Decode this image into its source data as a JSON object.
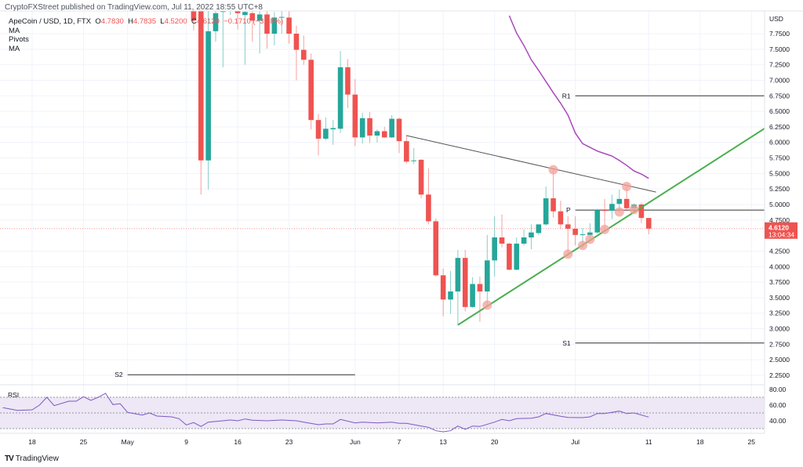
{
  "header": {
    "published": "CryptoFXStreet published on TradingView.com, Jul 11, 2022 18:55 UTC+8"
  },
  "legend": {
    "symbol": "ApeCoin / USD, 1D, FTX",
    "o_label": "O",
    "o": "4.7830",
    "h_label": "H",
    "h": "4.7835",
    "l_label": "L",
    "l": "4.5200",
    "c_label": "C",
    "c": "4.6120",
    "change": "−0.1710 (−3.58%)",
    "indicators": [
      "MA",
      "Pivots",
      "MA"
    ]
  },
  "footer": {
    "brand": "TradingView",
    "logo_icon": "tradingview-logo-icon"
  },
  "colors": {
    "up": "#26a69a",
    "down": "#ef5350",
    "ma": "#ab47bc",
    "trend_support": "#4caf50",
    "trend_resistance": "#555555",
    "pivot": "#333333",
    "rsi": "#7e57c2",
    "rsi_band": "#ede7f6",
    "marker": "#f4a09a"
  },
  "chart_data": [
    {
      "type": "candlestick",
      "currency_label": "USD",
      "ylim": [
        2.1,
        8.1
      ],
      "y_ticks": [
        "7.7500",
        "7.5000",
        "7.2500",
        "7.0000",
        "6.7500",
        "6.5000",
        "6.2500",
        "6.0000",
        "5.7500",
        "5.5000",
        "5.2500",
        "5.0000",
        "4.7500",
        "4.2500",
        "4.0000",
        "3.7500",
        "3.5000",
        "3.2500",
        "3.0000",
        "2.7500",
        "2.5000",
        "2.2500"
      ],
      "x_ticks": [
        {
          "date": "2022-04-18",
          "label": "18"
        },
        {
          "date": "2022-04-25",
          "label": "25"
        },
        {
          "date": "2022-05-01",
          "label": "May"
        },
        {
          "date": "2022-05-09",
          "label": "9"
        },
        {
          "date": "2022-05-16",
          "label": "16"
        },
        {
          "date": "2022-05-23",
          "label": "23"
        },
        {
          "date": "2022-06-01",
          "label": "Jun"
        },
        {
          "date": "2022-06-07",
          "label": "7"
        },
        {
          "date": "2022-06-13",
          "label": "13"
        },
        {
          "date": "2022-06-20",
          "label": "20"
        },
        {
          "date": "2022-07-01",
          "label": "Jul"
        },
        {
          "date": "2022-07-11",
          "label": "11"
        },
        {
          "date": "2022-07-18",
          "label": "18"
        },
        {
          "date": "2022-07-25",
          "label": "25"
        }
      ],
      "last_price": {
        "value": 4.612,
        "label": "4.6120",
        "countdown": "13:04:34"
      },
      "candles_columns": [
        "date",
        "open",
        "high",
        "low",
        "close"
      ],
      "candles": [
        [
          "2022-05-10",
          8.3,
          8.6,
          7.8,
          7.96
        ],
        [
          "2022-05-11",
          8.4,
          8.6,
          5.16,
          5.71
        ],
        [
          "2022-05-12",
          5.71,
          8.3,
          5.24,
          7.79
        ],
        [
          "2022-05-13",
          7.79,
          8.4,
          7.62,
          8.08
        ],
        [
          "2022-05-14",
          8.1,
          8.5,
          7.21,
          8.3
        ],
        [
          "2022-05-15",
          8.3,
          8.45,
          8.05,
          8.32
        ],
        [
          "2022-05-16",
          8.15,
          8.5,
          7.82,
          8.08
        ],
        [
          "2022-05-17",
          8.05,
          8.4,
          7.25,
          8.1
        ],
        [
          "2022-05-18",
          8.08,
          8.3,
          7.62,
          7.96
        ],
        [
          "2022-05-19",
          7.96,
          8.2,
          7.43,
          8.06
        ],
        [
          "2022-05-20",
          8.06,
          8.2,
          7.51,
          7.75
        ],
        [
          "2022-05-21",
          7.75,
          8.1,
          7.56,
          8.01
        ],
        [
          "2022-05-22",
          8.01,
          8.2,
          7.75,
          8.02
        ],
        [
          "2022-05-23",
          8.01,
          8.2,
          7.59,
          7.75
        ],
        [
          "2022-05-24",
          7.75,
          7.88,
          7.0,
          7.49
        ],
        [
          "2022-05-25",
          7.49,
          7.72,
          7.25,
          7.33
        ],
        [
          "2022-05-26",
          7.33,
          7.43,
          6.21,
          6.36
        ],
        [
          "2022-05-27",
          6.36,
          6.46,
          5.79,
          6.06
        ],
        [
          "2022-05-28",
          6.06,
          6.4,
          6.03,
          6.22
        ],
        [
          "2022-05-29",
          6.21,
          6.36,
          5.96,
          6.23
        ],
        [
          "2022-05-30",
          6.22,
          7.47,
          6.15,
          7.21
        ],
        [
          "2022-05-31",
          7.21,
          7.34,
          6.55,
          6.77
        ],
        [
          "2022-06-01",
          6.77,
          7.02,
          5.94,
          6.08
        ],
        [
          "2022-06-02",
          6.08,
          6.48,
          5.98,
          6.39
        ],
        [
          "2022-06-03",
          6.39,
          6.49,
          5.99,
          6.11
        ],
        [
          "2022-06-04",
          6.11,
          6.21,
          6.0,
          6.18
        ],
        [
          "2022-06-05",
          6.18,
          6.25,
          6.07,
          6.08
        ],
        [
          "2022-06-06",
          6.08,
          6.44,
          6.07,
          6.38
        ],
        [
          "2022-06-07",
          6.38,
          6.4,
          5.83,
          6.02
        ],
        [
          "2022-06-08",
          6.02,
          6.12,
          5.66,
          5.69
        ],
        [
          "2022-06-09",
          5.7,
          5.91,
          5.65,
          5.71
        ],
        [
          "2022-06-10",
          5.72,
          5.73,
          5.1,
          5.16
        ],
        [
          "2022-06-11",
          5.16,
          5.58,
          4.68,
          4.73
        ],
        [
          "2022-06-12",
          4.73,
          4.78,
          3.84,
          3.86
        ],
        [
          "2022-06-13",
          3.86,
          3.97,
          3.2,
          3.47
        ],
        [
          "2022-06-14",
          3.47,
          3.93,
          3.24,
          3.6
        ],
        [
          "2022-06-15",
          3.6,
          4.27,
          3.06,
          4.14
        ],
        [
          "2022-06-16",
          4.14,
          4.27,
          3.28,
          3.35
        ],
        [
          "2022-06-17",
          3.35,
          3.83,
          3.34,
          3.72
        ],
        [
          "2022-06-18",
          3.72,
          3.84,
          3.11,
          3.6
        ],
        [
          "2022-06-19",
          3.6,
          4.51,
          3.35,
          4.1
        ],
        [
          "2022-06-20",
          4.1,
          4.81,
          3.84,
          4.47
        ],
        [
          "2022-06-21",
          4.47,
          4.84,
          4.31,
          4.37
        ],
        [
          "2022-06-22",
          4.37,
          4.38,
          3.94,
          3.95
        ],
        [
          "2022-06-23",
          3.95,
          4.47,
          3.94,
          4.37
        ],
        [
          "2022-06-24",
          4.37,
          4.6,
          4.34,
          4.47
        ],
        [
          "2022-06-25",
          4.47,
          4.68,
          4.28,
          4.55
        ],
        [
          "2022-06-26",
          4.54,
          4.68,
          4.51,
          4.68
        ],
        [
          "2022-06-27",
          4.68,
          5.29,
          4.66,
          5.1
        ],
        [
          "2022-06-28",
          5.1,
          5.56,
          4.79,
          4.89
        ],
        [
          "2022-06-29",
          4.89,
          5.06,
          4.61,
          4.68
        ],
        [
          "2022-06-30",
          4.68,
          4.81,
          4.2,
          4.61
        ],
        [
          "2022-07-01",
          4.61,
          4.81,
          4.34,
          4.51
        ],
        [
          "2022-07-02",
          4.51,
          4.62,
          4.3,
          4.52
        ],
        [
          "2022-07-03",
          4.51,
          4.7,
          4.4,
          4.55
        ],
        [
          "2022-07-04",
          4.55,
          4.93,
          4.53,
          4.91
        ],
        [
          "2022-07-05",
          4.91,
          5.09,
          4.59,
          4.9
        ],
        [
          "2022-07-06",
          4.9,
          5.16,
          4.77,
          5.01
        ],
        [
          "2022-07-07",
          5.01,
          5.24,
          4.88,
          5.09
        ],
        [
          "2022-07-08",
          5.09,
          5.29,
          4.9,
          4.94
        ],
        [
          "2022-07-09",
          4.94,
          5.02,
          4.89,
          5.0
        ],
        [
          "2022-07-10",
          5.0,
          5.03,
          4.7,
          4.783
        ],
        [
          "2022-07-11",
          4.783,
          4.7835,
          4.52,
          4.612
        ]
      ],
      "ma": {
        "start": "2022-06-22",
        "values": [
          8.04,
          7.76,
          7.56,
          7.33,
          7.16,
          6.98,
          6.8,
          6.63,
          6.44,
          6.15,
          5.98,
          5.92,
          5.86,
          5.82,
          5.78,
          5.71,
          5.63,
          5.54,
          5.49,
          5.42
        ]
      },
      "pivots": [
        {
          "label": "R1",
          "value": 6.75,
          "from": "2022-07-01"
        },
        {
          "label": "P",
          "value": 4.91,
          "from": "2022-07-01"
        },
        {
          "label": "S1",
          "value": 2.77,
          "from": "2022-07-01"
        },
        {
          "label": "S2",
          "value": 2.26,
          "from": "2022-05-01",
          "to": "2022-06-01"
        }
      ],
      "trendlines": [
        {
          "kind": "resistance",
          "points": [
            [
              "2022-06-08",
              6.11
            ],
            [
              "2022-07-12",
              5.2
            ]
          ]
        },
        {
          "kind": "support",
          "points": [
            [
              "2022-06-15",
              3.06
            ],
            [
              "2022-07-27",
              6.24
            ]
          ]
        }
      ],
      "markers": [
        [
          "2022-06-19",
          3.38
        ],
        [
          "2022-06-28",
          5.56
        ],
        [
          "2022-06-30",
          4.2
        ],
        [
          "2022-07-02",
          4.34
        ],
        [
          "2022-07-03",
          4.44
        ],
        [
          "2022-07-05",
          4.6
        ],
        [
          "2022-07-07",
          4.88
        ],
        [
          "2022-07-08",
          5.29
        ],
        [
          "2022-07-09",
          4.92
        ]
      ]
    },
    {
      "type": "line",
      "title": "RSI",
      "ylim": [
        27,
        80
      ],
      "y_ticks": [
        "80.00",
        "60.00",
        "40.00"
      ],
      "bands": {
        "upper": 70,
        "middle": 50,
        "lower": 30
      },
      "points": [
        [
          "2022-04-14",
          56.7
        ],
        [
          "2022-04-16",
          53.3
        ],
        [
          "2022-04-18",
          54
        ],
        [
          "2022-04-19",
          60
        ],
        [
          "2022-04-20",
          70
        ],
        [
          "2022-04-21",
          59.3
        ],
        [
          "2022-04-23",
          65
        ],
        [
          "2022-04-24",
          65
        ],
        [
          "2022-04-25",
          70.7
        ],
        [
          "2022-04-26",
          66
        ],
        [
          "2022-04-27",
          70
        ],
        [
          "2022-04-28",
          75
        ],
        [
          "2022-04-29",
          60.7
        ],
        [
          "2022-04-30",
          61.7
        ],
        [
          "2022-05-01",
          50.7
        ],
        [
          "2022-05-03",
          47.3
        ],
        [
          "2022-05-04",
          50
        ],
        [
          "2022-05-05",
          46
        ],
        [
          "2022-05-07",
          45
        ],
        [
          "2022-05-08",
          42.7
        ],
        [
          "2022-05-09",
          34.7
        ],
        [
          "2022-05-10",
          37.7
        ],
        [
          "2022-05-11",
          32.7
        ],
        [
          "2022-05-12",
          38.3
        ],
        [
          "2022-05-14",
          40
        ],
        [
          "2022-05-15",
          41
        ],
        [
          "2022-05-16",
          40
        ],
        [
          "2022-05-17",
          42.3
        ],
        [
          "2022-05-18",
          40.7
        ],
        [
          "2022-05-20",
          40
        ],
        [
          "2022-05-22",
          41
        ],
        [
          "2022-05-24",
          40
        ],
        [
          "2022-05-25",
          38.3
        ],
        [
          "2022-05-27",
          35
        ],
        [
          "2022-05-28",
          36
        ],
        [
          "2022-05-29",
          36
        ],
        [
          "2022-05-30",
          41.7
        ],
        [
          "2022-06-01",
          37.3
        ],
        [
          "2022-06-02",
          38.3
        ],
        [
          "2022-06-04",
          37.3
        ],
        [
          "2022-06-06",
          38.3
        ],
        [
          "2022-06-07",
          36.7
        ],
        [
          "2022-06-08",
          36.7
        ],
        [
          "2022-06-10",
          33.3
        ],
        [
          "2022-06-11",
          31.7
        ],
        [
          "2022-06-12",
          27.3
        ],
        [
          "2022-06-13",
          26
        ],
        [
          "2022-06-14",
          27.3
        ],
        [
          "2022-06-15",
          33.3
        ],
        [
          "2022-06-16",
          29
        ],
        [
          "2022-06-17",
          33.3
        ],
        [
          "2022-06-18",
          32.7
        ],
        [
          "2022-06-20",
          38.3
        ],
        [
          "2022-06-21",
          41.7
        ],
        [
          "2022-06-22",
          40
        ],
        [
          "2022-06-23",
          42.7
        ],
        [
          "2022-06-25",
          43.3
        ],
        [
          "2022-06-26",
          45
        ],
        [
          "2022-06-27",
          49.3
        ],
        [
          "2022-06-29",
          45.7
        ],
        [
          "2022-06-30",
          44.3
        ],
        [
          "2022-07-02",
          44
        ],
        [
          "2022-07-03",
          45
        ],
        [
          "2022-07-04",
          49.3
        ],
        [
          "2022-07-05",
          49.3
        ],
        [
          "2022-07-07",
          52.3
        ],
        [
          "2022-07-08",
          49.3
        ],
        [
          "2022-07-09",
          50
        ],
        [
          "2022-07-11",
          44.7
        ]
      ]
    }
  ]
}
